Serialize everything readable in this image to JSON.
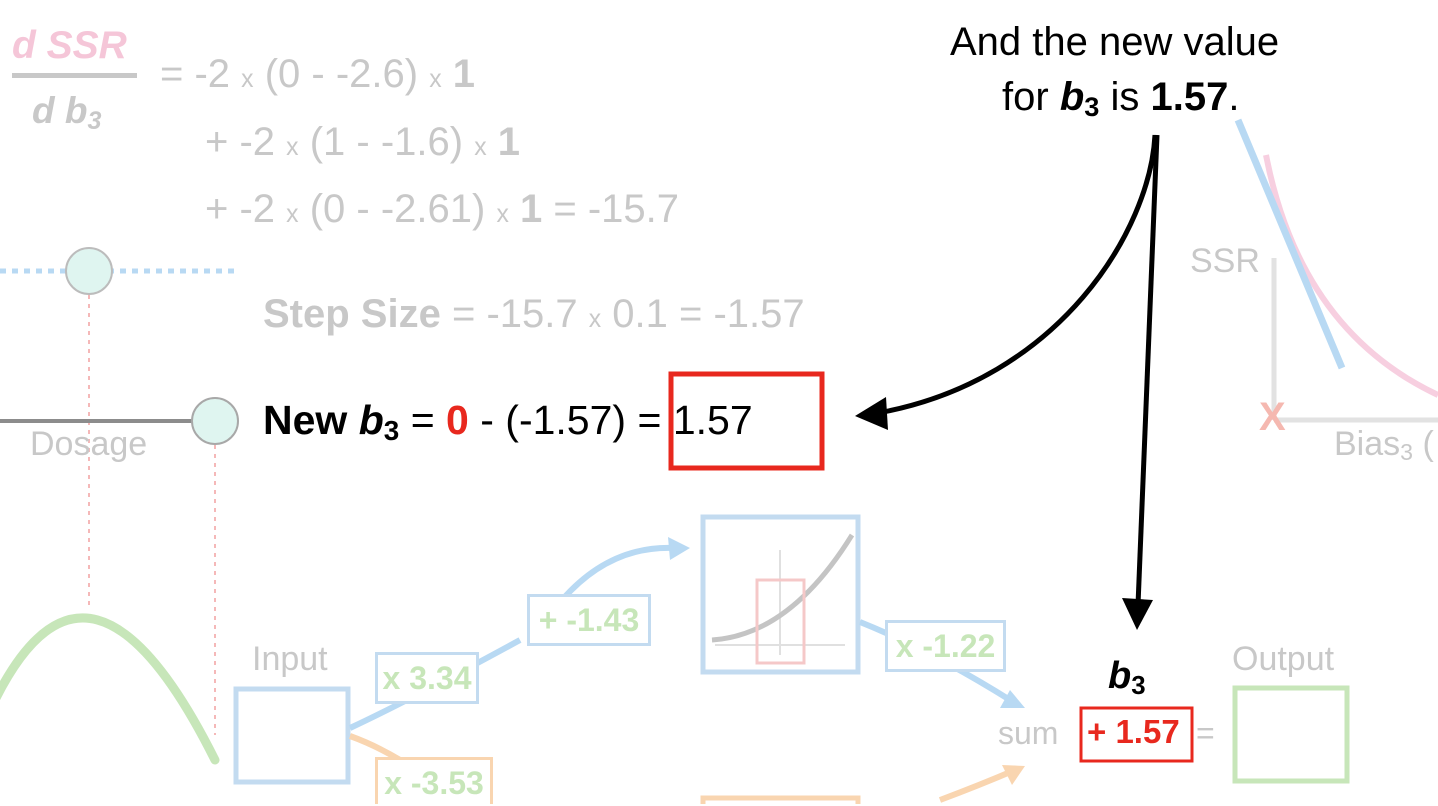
{
  "derivative": {
    "numerator": "d SSR",
    "denominator_d": "d",
    "denominator_var": "b",
    "denominator_sub": "3",
    "line1": {
      "eq": "= -2",
      "x1": "x",
      "paren": "(0 - -2.6)",
      "x2": "x",
      "one": "1"
    },
    "line2": {
      "lead": "+ -2",
      "x1": "x",
      "paren": "(1 - -1.6)",
      "x2": "x",
      "one": "1"
    },
    "line3": {
      "lead": "+ -2",
      "x1": "x",
      "paren": "(0 - -2.61)",
      "x2": "x",
      "one": "1",
      "result": "= -15.7"
    }
  },
  "step_size": {
    "label": "Step Size",
    "lhs": "= -15.7",
    "times": "x",
    "rhs": "0.1 = -1.57"
  },
  "new_b3": {
    "label": "New",
    "var": "b",
    "sub": "3",
    "eq": "=",
    "old_value": "0",
    "minus": "- (-1.57)",
    "result": "= 1.57"
  },
  "callout": {
    "line1": "And the new value",
    "line2_prefix": "for",
    "var": "b",
    "sub": "3",
    "is": "is",
    "value": "1.57",
    "period": "."
  },
  "network": {
    "dosage_label": "Dosage",
    "input_label": "Input",
    "output_label": "Output",
    "weight_top": "x 3.34",
    "weight_bottom": "x -3.53",
    "bias_top": "+ -1.43",
    "weight_out_top": "x -1.22",
    "sum_label": "sum",
    "b3_var": "b",
    "b3_sub": "3",
    "b3_box": "+ 1.57",
    "equals": "="
  },
  "ssr_plot": {
    "ylabel": "SSR",
    "xlabel_prefix": "Bias",
    "xlabel_sub": "3",
    "xlabel_suffix": "(",
    "marker": "X"
  },
  "colors": {
    "red": "#e8281e",
    "faint_text": "#c8c8c8",
    "blue": "#b8d9f3",
    "green": "#c7e6b9",
    "orange": "#f9d5b0",
    "pink": "#f7cfe0",
    "node_fill": "#dff5f0"
  }
}
